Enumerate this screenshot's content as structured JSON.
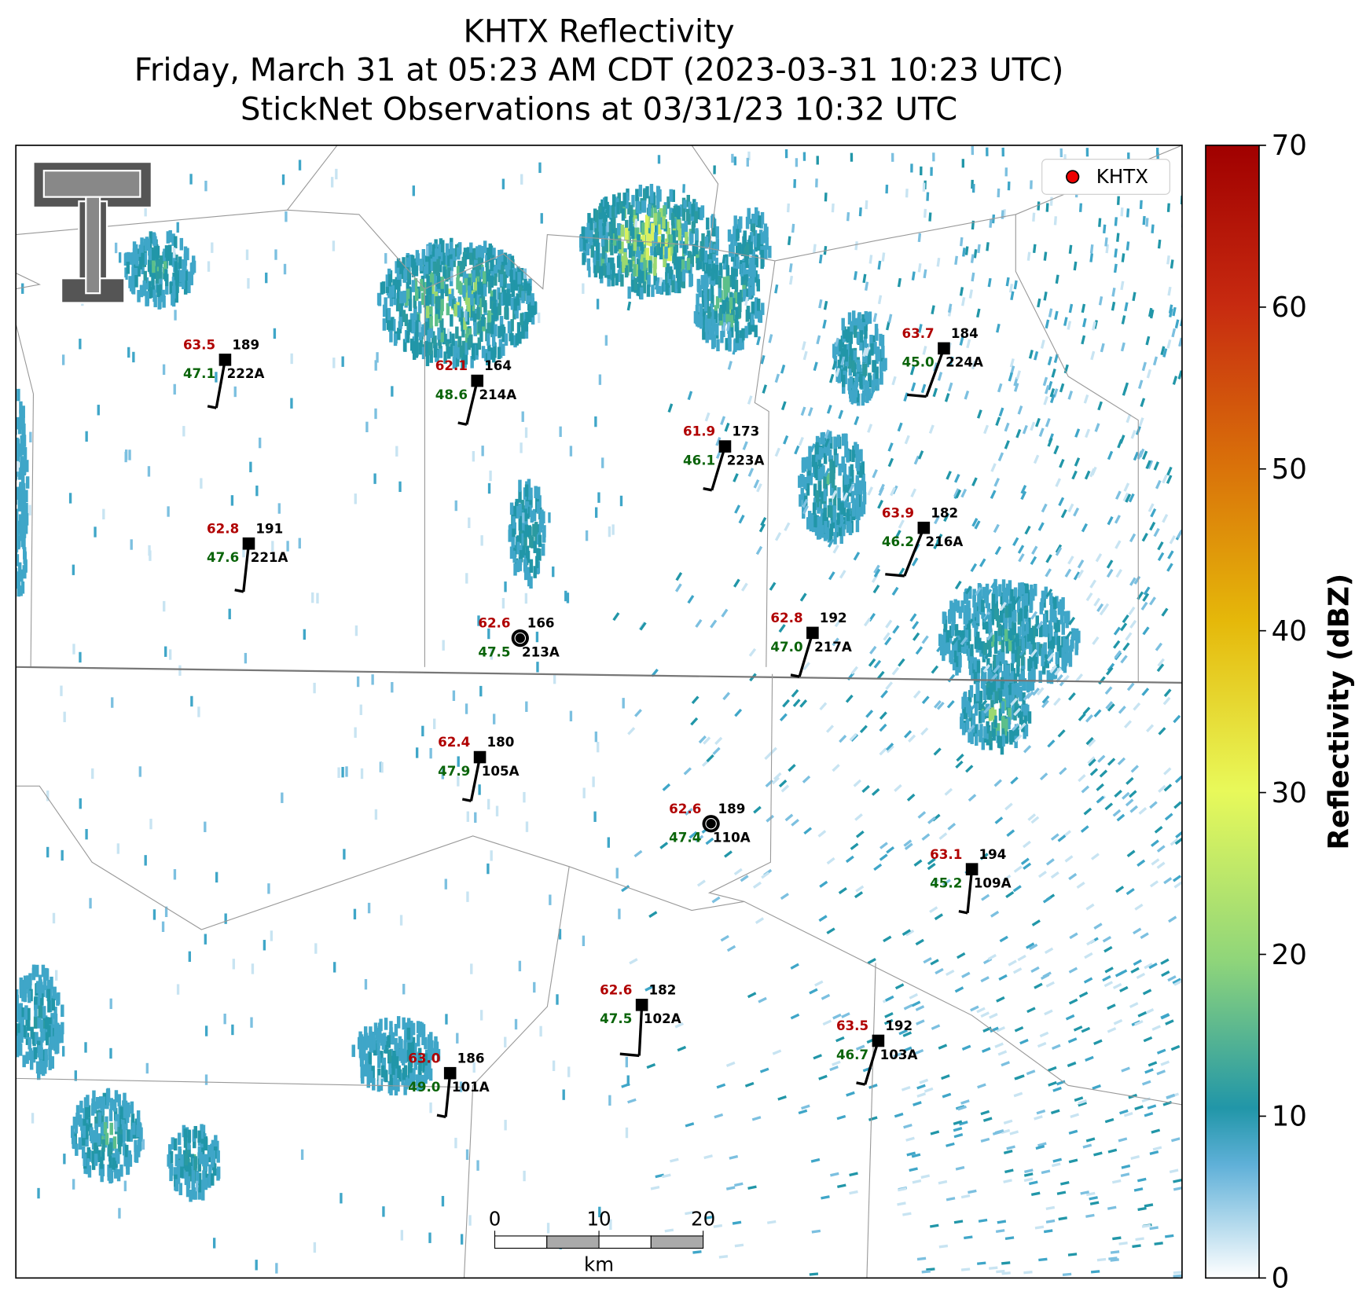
{
  "header": {
    "title": "KHTX Reflectivity",
    "subtitle": "Friday, March 31 at 05:23 AM CDT (2023-03-31 10:23 UTC)",
    "observations": "StickNet Observations at 03/31/23 10:32 UTC"
  },
  "legend": {
    "label": "KHTX"
  },
  "colorbar": {
    "label": "Reflectivity (dBZ)",
    "lim": [
      0,
      70
    ],
    "ticks": [
      0,
      10,
      20,
      30,
      40,
      50,
      60,
      70
    ]
  },
  "scale_bar": {
    "ticks": [
      0,
      10,
      20
    ],
    "unit": "km"
  },
  "stations": [
    {
      "id": "222A",
      "temperature": "63.5",
      "dewpoint": "47.1",
      "pressure": "189"
    },
    {
      "id": "214A",
      "temperature": "62.1",
      "dewpoint": "48.6",
      "pressure": "164"
    },
    {
      "id": "223A",
      "temperature": "61.9",
      "dewpoint": "46.1",
      "pressure": "173"
    },
    {
      "id": "224A",
      "temperature": "63.7",
      "dewpoint": "45.0",
      "pressure": "184"
    },
    {
      "id": "221A",
      "temperature": "62.8",
      "dewpoint": "47.6",
      "pressure": "191"
    },
    {
      "id": "216A",
      "temperature": "63.9",
      "dewpoint": "46.2",
      "pressure": "182"
    },
    {
      "id": "213A",
      "temperature": "62.6",
      "dewpoint": "47.5",
      "pressure": "166"
    },
    {
      "id": "217A",
      "temperature": "62.8",
      "dewpoint": "47.0",
      "pressure": "192"
    },
    {
      "id": "105A",
      "temperature": "62.4",
      "dewpoint": "47.9",
      "pressure": "180"
    },
    {
      "id": "110A",
      "temperature": "62.6",
      "dewpoint": "47.4",
      "pressure": "189"
    },
    {
      "id": "109A",
      "temperature": "63.1",
      "dewpoint": "45.2",
      "pressure": "194"
    },
    {
      "id": "102A",
      "temperature": "62.6",
      "dewpoint": "47.5",
      "pressure": "182"
    },
    {
      "id": "103A",
      "temperature": "63.5",
      "dewpoint": "46.7",
      "pressure": "192"
    },
    {
      "id": "101A",
      "temperature": "63.0",
      "dewpoint": "49.0",
      "pressure": "186"
    }
  ]
}
